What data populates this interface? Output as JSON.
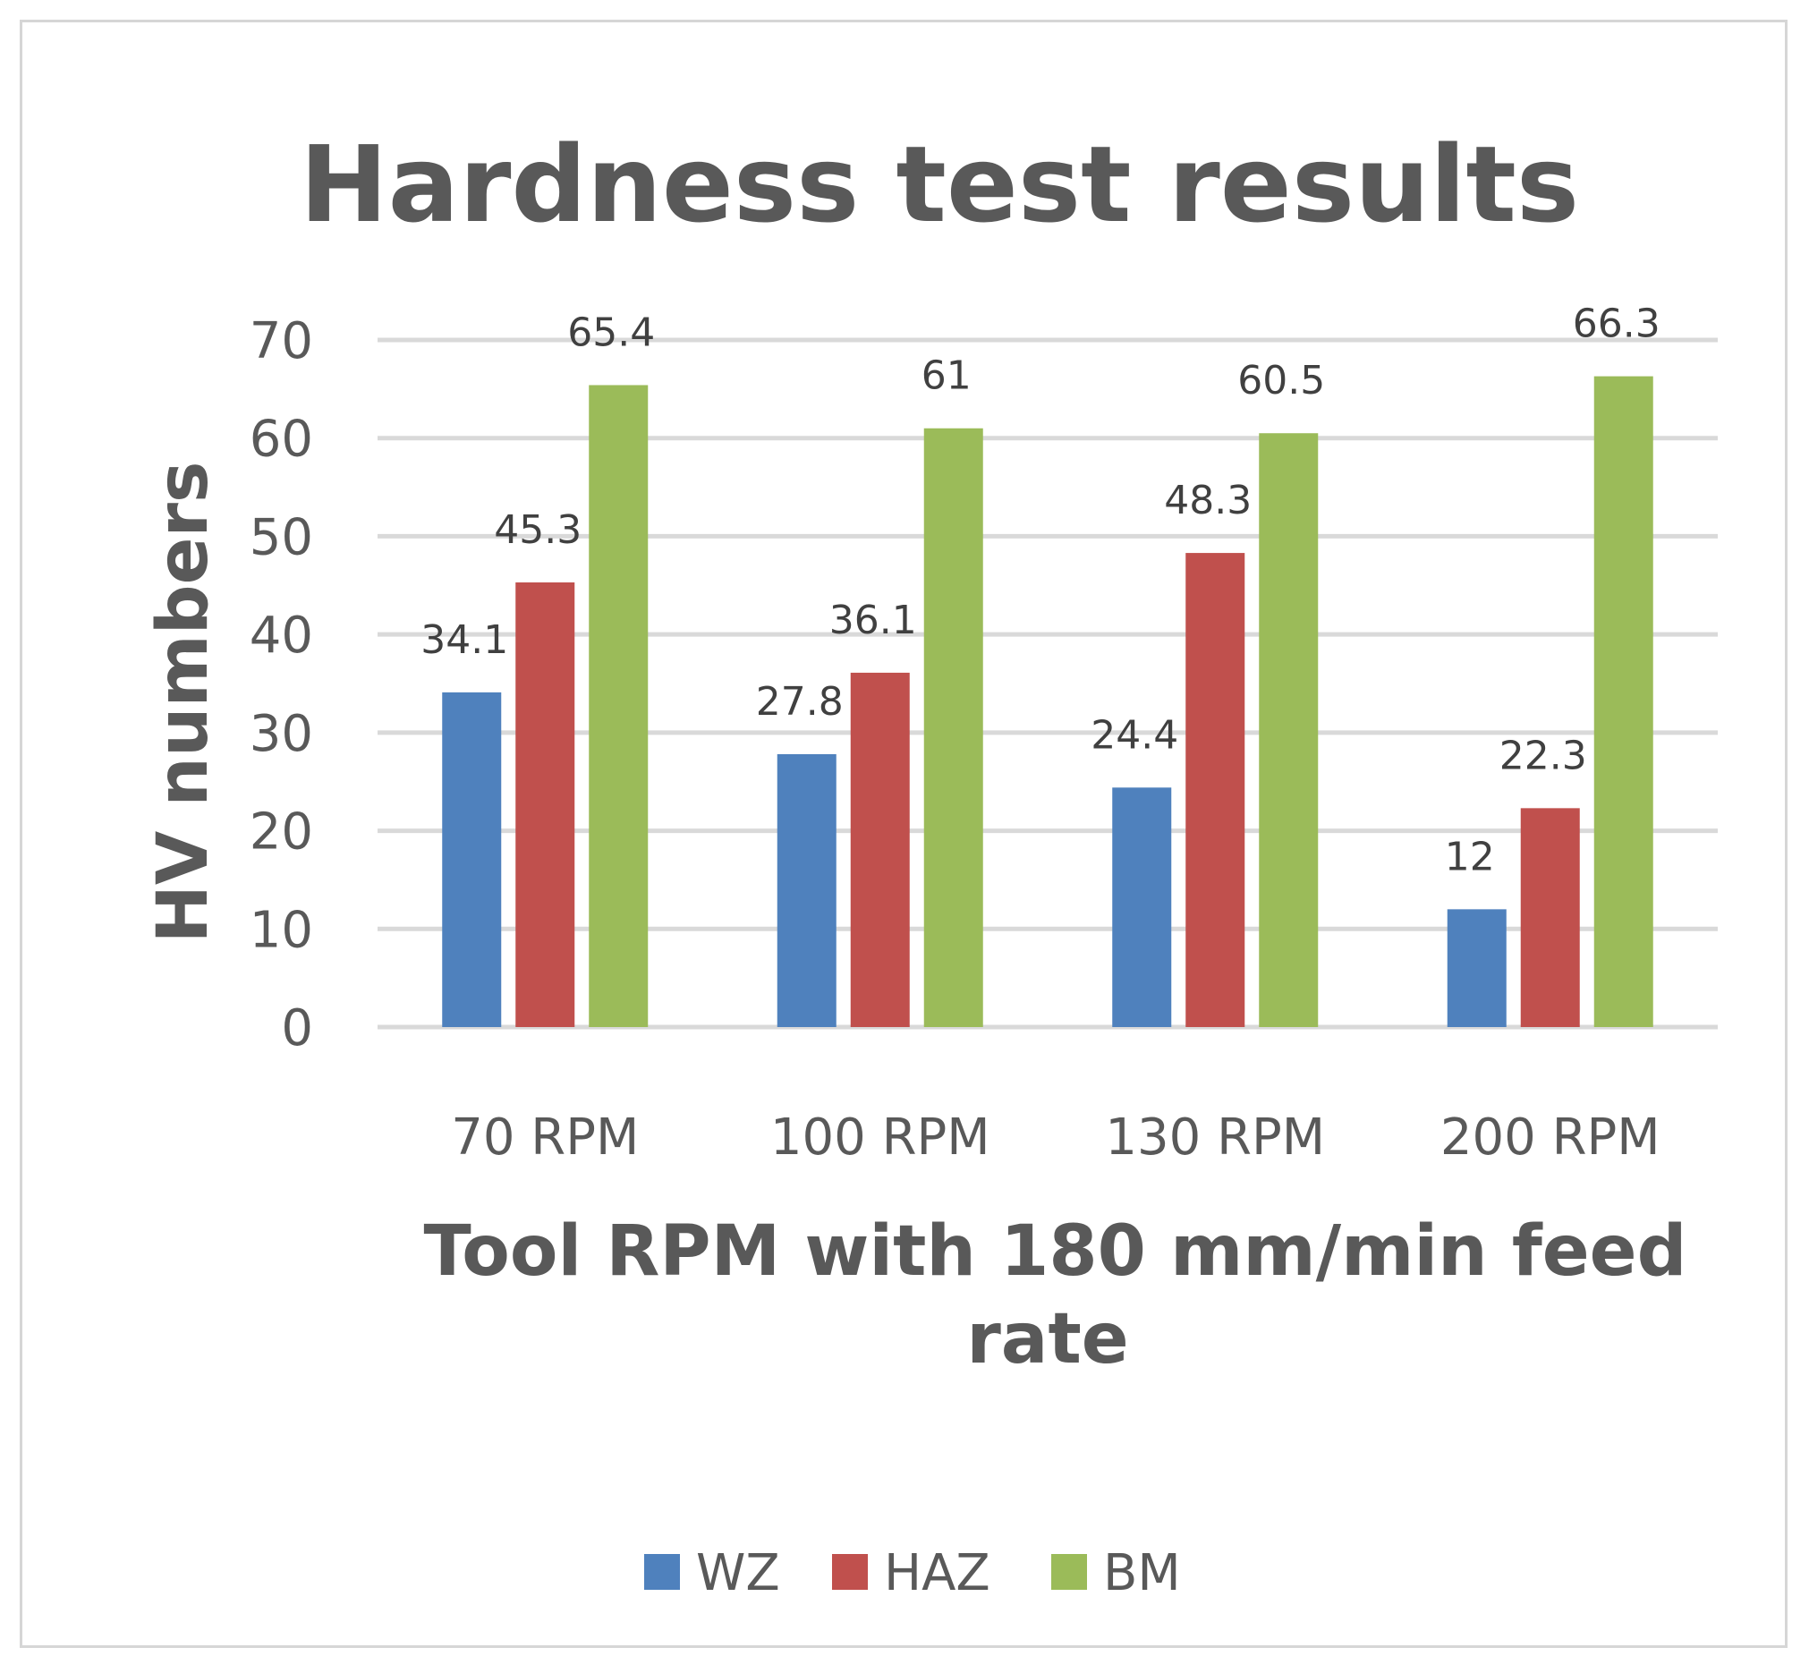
{
  "chart_data": {
    "type": "bar",
    "title": "Hardness test results",
    "xlabel": "Tool RPM with 180 mm/min feed rate",
    "ylabel": "HV numbers",
    "categories": [
      "70 RPM",
      "100 RPM",
      "130 RPM",
      "200 RPM"
    ],
    "series": [
      {
        "name": "WZ",
        "color": "#4f81bd",
        "values": [
          34.1,
          27.8,
          24.4,
          12
        ]
      },
      {
        "name": "HAZ",
        "color": "#c0504d",
        "values": [
          45.3,
          36.1,
          48.3,
          22.3
        ]
      },
      {
        "name": "BM",
        "color": "#9bbb59",
        "values": [
          65.4,
          61,
          60.5,
          66.3
        ]
      }
    ],
    "data_labels": [
      [
        "34.1",
        "27.8",
        "24.4",
        "12"
      ],
      [
        "45.3",
        "36.1",
        "48.3",
        "22.3"
      ],
      [
        "65.4",
        "61",
        "60.5",
        "66.3"
      ]
    ],
    "yticks": [
      "0",
      "10",
      "20",
      "30",
      "40",
      "50",
      "60",
      "70"
    ],
    "ylim": [
      0,
      70
    ],
    "grid": true,
    "legend": "bottom"
  }
}
